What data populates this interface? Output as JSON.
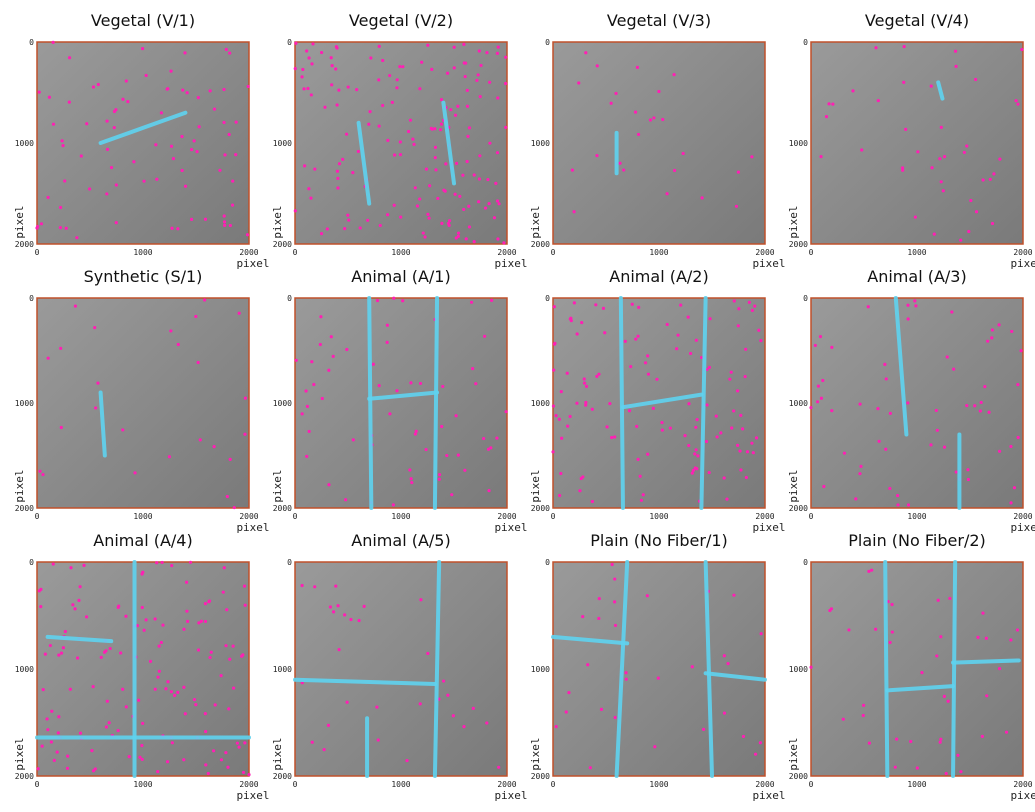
{
  "panels": [
    {
      "title": "Vegetal (V/1)"
    },
    {
      "title": "Vegetal (V/2)"
    },
    {
      "title": "Vegetal (V/3)"
    },
    {
      "title": "Vegetal (V/4)"
    },
    {
      "title": "Synthetic (S/1)"
    },
    {
      "title": "Animal (A/1)"
    },
    {
      "title": "Animal (A/2)"
    },
    {
      "title": "Animal (A/3)"
    },
    {
      "title": "Animal (A/4)"
    },
    {
      "title": "Animal (A/5)"
    },
    {
      "title": "Plain (No Fiber/1)"
    },
    {
      "title": "Plain (No Fiber/2)"
    }
  ],
  "axis": {
    "ticks": [
      "0",
      "1000",
      "2000"
    ],
    "label": "pixel"
  }
}
